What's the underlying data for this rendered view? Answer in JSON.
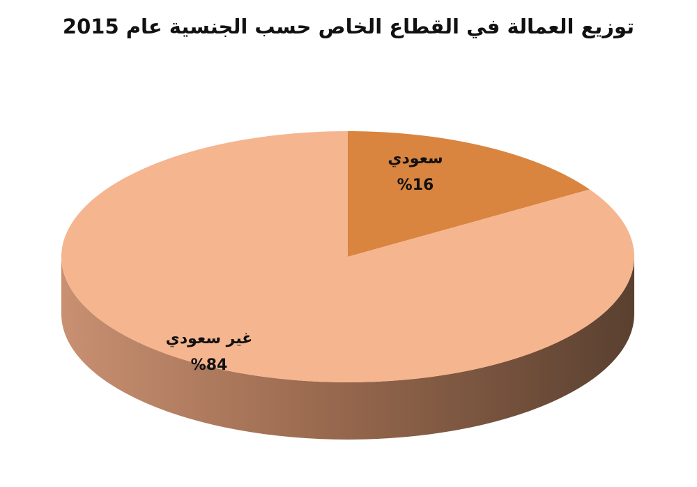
{
  "chart_data": {
    "type": "pie",
    "title": "توزيع العمالة في القطاع الخاص حسب الجنسية عام 2015",
    "categories": [
      "سعودي",
      "غير سعودي"
    ],
    "values": [
      16,
      84
    ],
    "value_labels": [
      "%16",
      "%84"
    ],
    "colors": [
      "#d9843f",
      "#f5b58f"
    ]
  }
}
